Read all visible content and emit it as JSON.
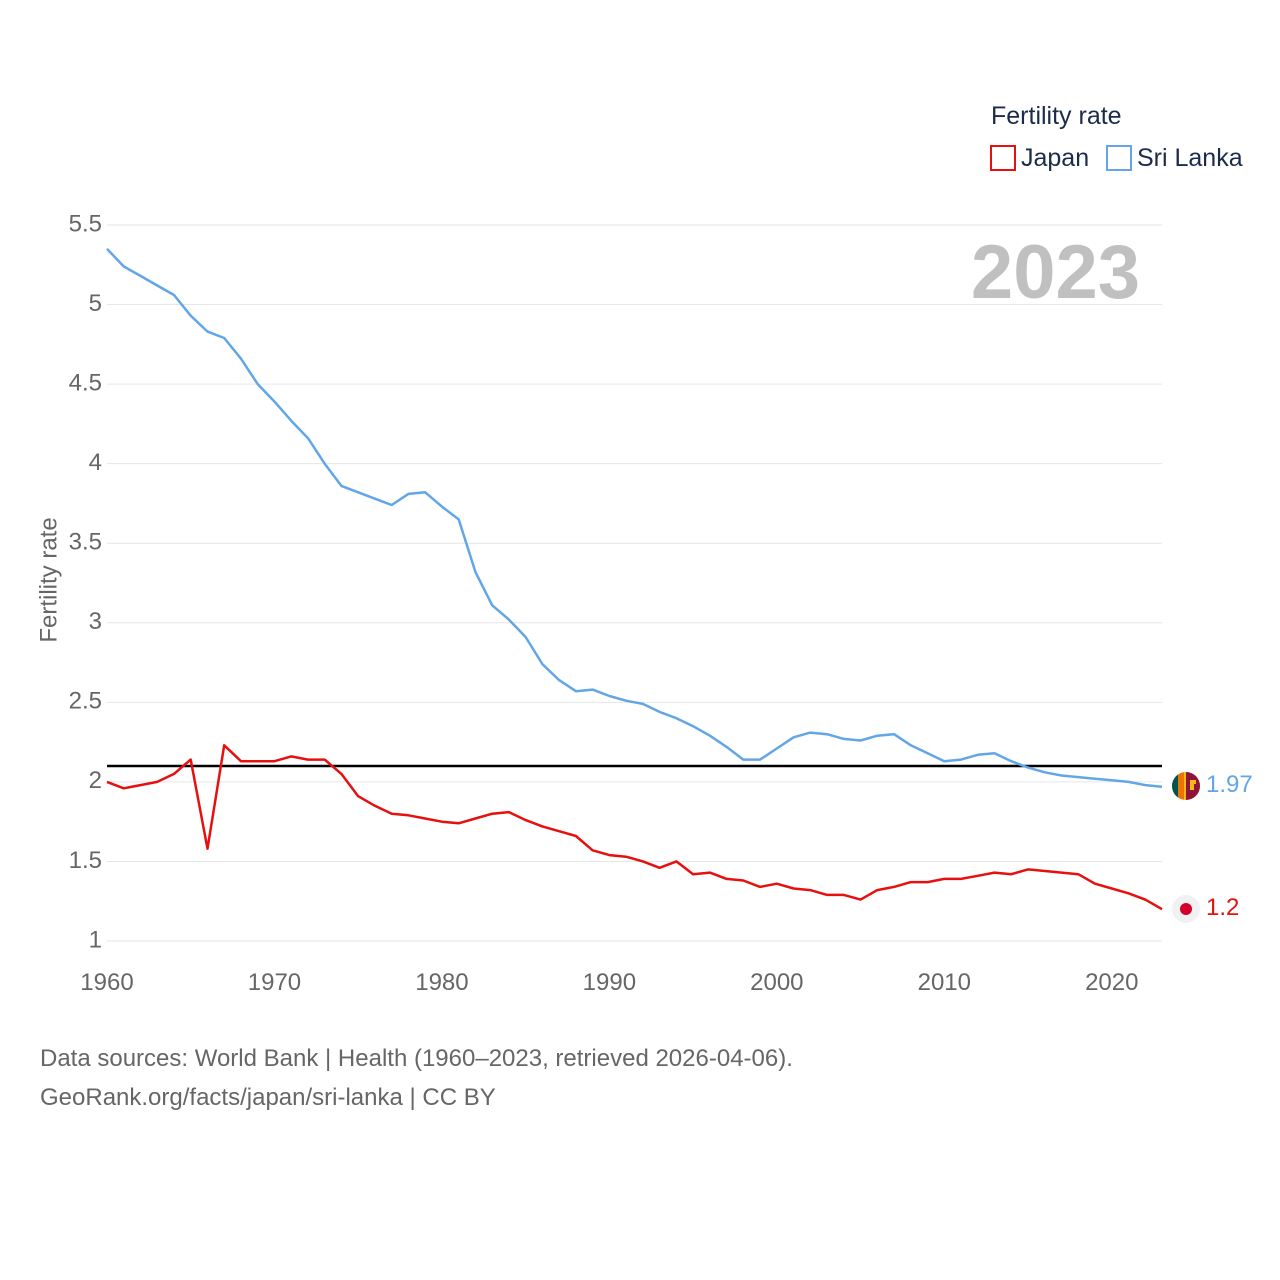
{
  "chart_data": {
    "type": "line",
    "title": "",
    "xlabel": "",
    "ylabel": "Fertility rate",
    "xlim": [
      1960,
      2023
    ],
    "ylim": [
      1,
      5.5
    ],
    "x_ticks": [
      1960,
      1970,
      1980,
      1990,
      2000,
      2010,
      2020
    ],
    "y_ticks": [
      1,
      1.5,
      2,
      2.5,
      3,
      3.5,
      4,
      4.5,
      5,
      5.5
    ],
    "y_tick_labels": [
      "1",
      "1.5",
      "2",
      "2.5",
      "3",
      "3.5",
      "4",
      "4.5",
      "5",
      "5.5"
    ],
    "current_year": "2023",
    "reference_line": 2.1,
    "legend": {
      "title": "Fertility rate",
      "position": "top-right"
    },
    "x": [
      1960,
      1961,
      1962,
      1963,
      1964,
      1965,
      1966,
      1967,
      1968,
      1969,
      1970,
      1971,
      1972,
      1973,
      1974,
      1975,
      1976,
      1977,
      1978,
      1979,
      1980,
      1981,
      1982,
      1983,
      1984,
      1985,
      1986,
      1987,
      1988,
      1989,
      1990,
      1991,
      1992,
      1993,
      1994,
      1995,
      1996,
      1997,
      1998,
      1999,
      2000,
      2001,
      2002,
      2003,
      2004,
      2005,
      2006,
      2007,
      2008,
      2009,
      2010,
      2011,
      2012,
      2013,
      2014,
      2015,
      2016,
      2017,
      2018,
      2019,
      2020,
      2021,
      2022,
      2023
    ],
    "series": [
      {
        "name": "Japan",
        "color": "#e6110f",
        "end_label": "1.2",
        "flag": "japan-flag",
        "values": [
          2.0,
          1.96,
          1.98,
          2.0,
          2.05,
          2.14,
          1.58,
          2.23,
          2.13,
          2.13,
          2.13,
          2.16,
          2.14,
          2.14,
          2.05,
          1.91,
          1.85,
          1.8,
          1.79,
          1.77,
          1.75,
          1.74,
          1.77,
          1.8,
          1.81,
          1.76,
          1.72,
          1.69,
          1.66,
          1.57,
          1.54,
          1.53,
          1.5,
          1.46,
          1.5,
          1.42,
          1.43,
          1.39,
          1.38,
          1.34,
          1.36,
          1.33,
          1.32,
          1.29,
          1.29,
          1.26,
          1.32,
          1.34,
          1.37,
          1.37,
          1.39,
          1.39,
          1.41,
          1.43,
          1.42,
          1.45,
          1.44,
          1.43,
          1.42,
          1.36,
          1.33,
          1.3,
          1.26,
          1.2
        ]
      },
      {
        "name": "Sri Lanka",
        "color": "#62a6e8",
        "end_label": "1.97",
        "flag": "sri-lanka-flag",
        "values": [
          5.35,
          5.24,
          5.18,
          5.12,
          5.06,
          4.93,
          4.83,
          4.79,
          4.66,
          4.5,
          4.39,
          4.27,
          4.16,
          4.0,
          3.86,
          3.82,
          3.78,
          3.74,
          3.81,
          3.82,
          3.73,
          3.65,
          3.32,
          3.11,
          3.02,
          2.91,
          2.74,
          2.64,
          2.57,
          2.58,
          2.54,
          2.51,
          2.49,
          2.44,
          2.4,
          2.35,
          2.29,
          2.22,
          2.14,
          2.14,
          2.21,
          2.28,
          2.31,
          2.3,
          2.27,
          2.26,
          2.29,
          2.3,
          2.23,
          2.18,
          2.13,
          2.14,
          2.17,
          2.18,
          2.13,
          2.09,
          2.06,
          2.04,
          2.03,
          2.02,
          2.01,
          2.0,
          1.98,
          1.97
        ]
      }
    ]
  },
  "footer": {
    "line1": "Data sources: World Bank | Health (1960–2023, retrieved 2026-04-06).",
    "line2": "GeoRank.org/facts/japan/sri-lanka | CC BY"
  }
}
